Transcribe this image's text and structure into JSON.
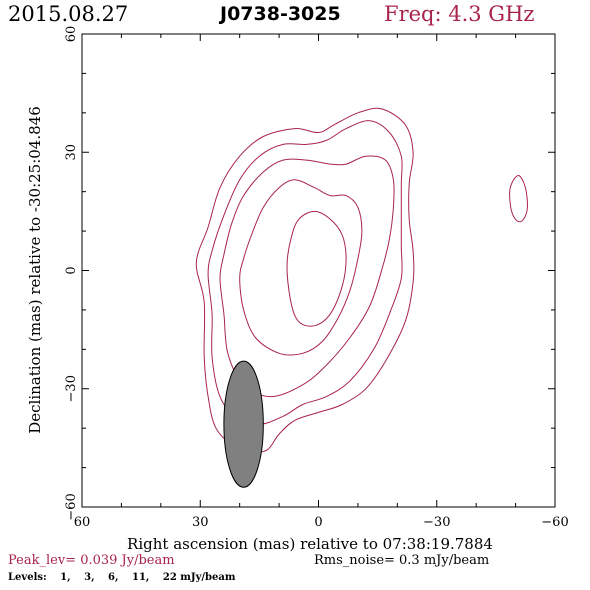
{
  "header": {
    "date": "2015.08.27",
    "source": "J0738-3025",
    "frequency": "Freq: 4.3 GHz"
  },
  "footer": {
    "peak": "Peak_lev=  0.039 Jy/beam",
    "rms": "Rms_noise=  0.3 mJy/beam",
    "levels_label": "Levels:",
    "levels": [
      "1,",
      "3,",
      "6,",
      "11,",
      "22 mJy/beam"
    ]
  },
  "colors": {
    "contour": "#a8244a",
    "beam_fill": "#808080",
    "frame": "#000000"
  },
  "chart_data": {
    "type": "contour",
    "xlabel": "Right ascension (mas) relative to 07:38:19.7884",
    "ylabel": "Declination (mas) relative to -30:25:04.846",
    "xlim": [
      60,
      -60
    ],
    "ylim": [
      -60,
      60
    ],
    "x_ticks": [
      60,
      30,
      0,
      -30,
      -60
    ],
    "y_ticks": [
      -60,
      -30,
      0,
      30,
      60
    ],
    "x_tick_labels": [
      "60",
      "30",
      "0",
      "−30",
      "−60"
    ],
    "y_tick_labels": [
      "−60",
      "−30",
      "0",
      "30",
      "60"
    ],
    "contour_levels_mJy": [
      1,
      3,
      6,
      11,
      22
    ],
    "contours": [
      {
        "level": 1,
        "points": [
          [
            31,
            2
          ],
          [
            29,
            -8
          ],
          [
            29,
            -22
          ],
          [
            28,
            -32
          ],
          [
            26,
            -40
          ],
          [
            21,
            -45
          ],
          [
            17,
            -46
          ],
          [
            13,
            -45.5
          ],
          [
            10,
            -41.5
          ],
          [
            6,
            -38
          ],
          [
            0,
            -36
          ],
          [
            -6,
            -34
          ],
          [
            -12,
            -30
          ],
          [
            -17,
            -23
          ],
          [
            -22,
            -13
          ],
          [
            -24,
            -3
          ],
          [
            -24,
            5
          ],
          [
            -23,
            13
          ],
          [
            -23,
            22
          ],
          [
            -24,
            30
          ],
          [
            -22,
            37
          ],
          [
            -16,
            41
          ],
          [
            -10,
            40
          ],
          [
            -4,
            37
          ],
          [
            0,
            35
          ],
          [
            6,
            36
          ],
          [
            14,
            34
          ],
          [
            20,
            29
          ],
          [
            25,
            21
          ],
          [
            28,
            11
          ]
        ]
      },
      {
        "level": 3,
        "points": [
          [
            28,
            -1
          ],
          [
            27,
            -11
          ],
          [
            27,
            -22
          ],
          [
            25,
            -32
          ],
          [
            21,
            -37
          ],
          [
            15,
            -39
          ],
          [
            9,
            -37
          ],
          [
            4,
            -34
          ],
          [
            -2,
            -32
          ],
          [
            -8,
            -28
          ],
          [
            -14,
            -20
          ],
          [
            -18,
            -11
          ],
          [
            -21,
            -2
          ],
          [
            -21,
            6
          ],
          [
            -21,
            14
          ],
          [
            -21,
            22
          ],
          [
            -21,
            29
          ],
          [
            -18,
            35
          ],
          [
            -13,
            38
          ],
          [
            -7,
            36
          ],
          [
            -2,
            33
          ],
          [
            3,
            32
          ],
          [
            9,
            32
          ],
          [
            15,
            29
          ],
          [
            20,
            23
          ],
          [
            24,
            14
          ],
          [
            27,
            5
          ]
        ]
      },
      {
        "level": 6,
        "points": [
          [
            25,
            -2
          ],
          [
            24,
            -11
          ],
          [
            23,
            -21
          ],
          [
            19,
            -29
          ],
          [
            12,
            -32
          ],
          [
            4,
            -29
          ],
          [
            -2,
            -24
          ],
          [
            -8,
            -17
          ],
          [
            -13,
            -9
          ],
          [
            -16,
            0
          ],
          [
            -18,
            8
          ],
          [
            -19,
            16
          ],
          [
            -19,
            23
          ],
          [
            -17,
            28
          ],
          [
            -12,
            29
          ],
          [
            -7,
            27
          ],
          [
            -3,
            27
          ],
          [
            3,
            28
          ],
          [
            9,
            28
          ],
          [
            14,
            25
          ],
          [
            19,
            19
          ],
          [
            22,
            12
          ],
          [
            24,
            4
          ]
        ]
      },
      {
        "level": 11,
        "points": [
          [
            20,
            -2
          ],
          [
            19,
            -10
          ],
          [
            16,
            -17
          ],
          [
            10,
            -21
          ],
          [
            4,
            -21
          ],
          [
            -1,
            -18
          ],
          [
            -5,
            -12
          ],
          [
            -8,
            -5
          ],
          [
            -10,
            3
          ],
          [
            -11,
            10
          ],
          [
            -10,
            16
          ],
          [
            -7,
            19
          ],
          [
            -3,
            19
          ],
          [
            1,
            21
          ],
          [
            6,
            23
          ],
          [
            10,
            21
          ],
          [
            14,
            16
          ],
          [
            17,
            9
          ],
          [
            19,
            3
          ]
        ]
      },
      {
        "level": 22,
        "points": [
          [
            7,
            -8
          ],
          [
            5,
            -13
          ],
          [
            1,
            -14
          ],
          [
            -3,
            -11
          ],
          [
            -6,
            -4
          ],
          [
            -7,
            3
          ],
          [
            -6,
            9
          ],
          [
            -3,
            13
          ],
          [
            1,
            15
          ],
          [
            5,
            13
          ],
          [
            7,
            8
          ],
          [
            8,
            1
          ]
        ]
      },
      {
        "level": 1,
        "points": [
          [
            -51,
            24
          ],
          [
            -52.5,
            21
          ],
          [
            -53,
            16
          ],
          [
            -52,
            13
          ],
          [
            -50.5,
            12.5
          ],
          [
            -49,
            15
          ],
          [
            -48.5,
            20
          ],
          [
            -49.5,
            23
          ]
        ]
      }
    ],
    "beam": {
      "center": [
        19,
        -39
      ],
      "major_axis": 32,
      "minor_axis": 10,
      "pa_deg": 0
    }
  }
}
